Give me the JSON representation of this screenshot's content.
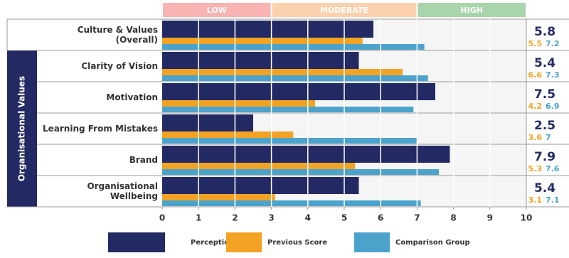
{
  "chart_data": {
    "type": "bar",
    "orientation": "horizontal",
    "group_label": "Organisational Values",
    "bands": [
      {
        "label": "LOW",
        "from": 0,
        "to": 3,
        "color": "#f9b3b3"
      },
      {
        "label": "MODERATE",
        "from": 3,
        "to": 7,
        "color": "#fcd2ae"
      },
      {
        "label": "HIGH",
        "from": 7,
        "to": 10,
        "color": "#a8d5ab"
      }
    ],
    "categories": [
      "Culture & Values (Overall)",
      "Clarity of Vision",
      "Motivation",
      "Learning From Mistakes",
      "Brand",
      "Organisational Wellbeing"
    ],
    "series": [
      {
        "name": "Perception",
        "color": "#232a63",
        "values": [
          5.8,
          5.4,
          7.5,
          2.5,
          7.9,
          5.4
        ]
      },
      {
        "name": "Previous Score",
        "color": "#f2a324",
        "values": [
          5.5,
          6.6,
          4.2,
          3.6,
          5.3,
          3.1
        ]
      },
      {
        "name": "Comparison Group",
        "color": "#4ba3cc",
        "values": [
          7.2,
          7.3,
          6.9,
          7,
          7.6,
          7.1
        ]
      }
    ],
    "xlim": [
      0,
      10
    ],
    "xticks": [
      0,
      1,
      2,
      3,
      4,
      5,
      6,
      7,
      8,
      9,
      10
    ],
    "grid": true
  }
}
